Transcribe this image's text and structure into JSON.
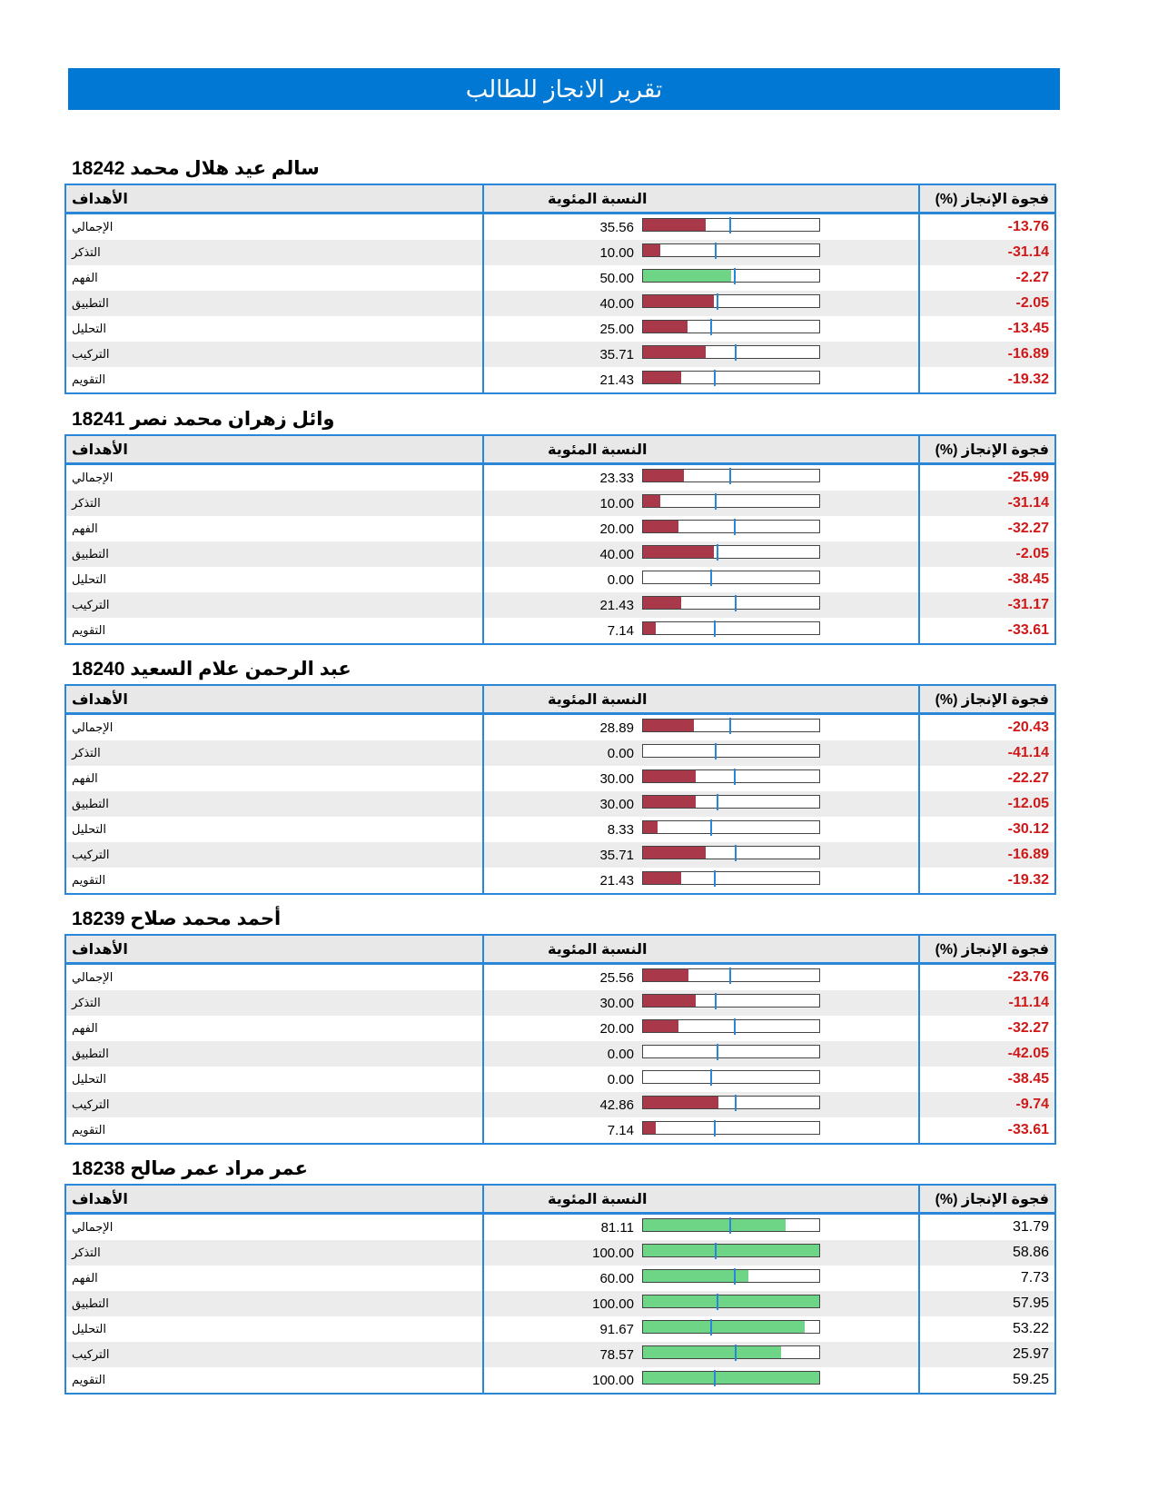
{
  "title": "تقرير الانجاز للطالب",
  "headers": {
    "objectives": "الأهداف",
    "percentage": "النسبة المئوية",
    "gap": "(%) فجوة الإنجاز"
  },
  "colors": {
    "banner": "#0078d4",
    "border": "#2a86d6",
    "bar_low": "#a8384a",
    "bar_high": "#6ed486",
    "gap_negative": "#d01818",
    "marker": "#2a86d6"
  },
  "students": [
    {
      "name": "سالم عيد هلال محمد",
      "id": "18242",
      "rows": [
        {
          "objective": "الإجمالي",
          "percent": "35.56",
          "value": 35.56,
          "benchmark": 49.32,
          "gap": "-13.76"
        },
        {
          "objective": "التذكر",
          "percent": "10.00",
          "value": 10.0,
          "benchmark": 41.14,
          "gap": "-31.14"
        },
        {
          "objective": "الفهم",
          "percent": "50.00",
          "value": 50.0,
          "benchmark": 52.27,
          "gap": "-2.27"
        },
        {
          "objective": "التطبيق",
          "percent": "40.00",
          "value": 40.0,
          "benchmark": 42.05,
          "gap": "-2.05"
        },
        {
          "objective": "التحليل",
          "percent": "25.00",
          "value": 25.0,
          "benchmark": 38.45,
          "gap": "-13.45"
        },
        {
          "objective": "التركيب",
          "percent": "35.71",
          "value": 35.71,
          "benchmark": 52.6,
          "gap": "-16.89"
        },
        {
          "objective": "التقويم",
          "percent": "21.43",
          "value": 21.43,
          "benchmark": 40.75,
          "gap": "-19.32"
        }
      ]
    },
    {
      "name": "وائل زهران محمد نصر",
      "id": "18241",
      "rows": [
        {
          "objective": "الإجمالي",
          "percent": "23.33",
          "value": 23.33,
          "benchmark": 49.32,
          "gap": "-25.99"
        },
        {
          "objective": "التذكر",
          "percent": "10.00",
          "value": 10.0,
          "benchmark": 41.14,
          "gap": "-31.14"
        },
        {
          "objective": "الفهم",
          "percent": "20.00",
          "value": 20.0,
          "benchmark": 52.27,
          "gap": "-32.27"
        },
        {
          "objective": "التطبيق",
          "percent": "40.00",
          "value": 40.0,
          "benchmark": 42.05,
          "gap": "-2.05"
        },
        {
          "objective": "التحليل",
          "percent": "0.00",
          "value": 0.0,
          "benchmark": 38.45,
          "gap": "-38.45"
        },
        {
          "objective": "التركيب",
          "percent": "21.43",
          "value": 21.43,
          "benchmark": 52.6,
          "gap": "-31.17"
        },
        {
          "objective": "التقويم",
          "percent": "7.14",
          "value": 7.14,
          "benchmark": 40.75,
          "gap": "-33.61"
        }
      ]
    },
    {
      "name": "عبد الرحمن علام السعيد",
      "id": "18240",
      "rows": [
        {
          "objective": "الإجمالي",
          "percent": "28.89",
          "value": 28.89,
          "benchmark": 49.32,
          "gap": "-20.43"
        },
        {
          "objective": "التذكر",
          "percent": "0.00",
          "value": 0.0,
          "benchmark": 41.14,
          "gap": "-41.14"
        },
        {
          "objective": "الفهم",
          "percent": "30.00",
          "value": 30.0,
          "benchmark": 52.27,
          "gap": "-22.27"
        },
        {
          "objective": "التطبيق",
          "percent": "30.00",
          "value": 30.0,
          "benchmark": 42.05,
          "gap": "-12.05"
        },
        {
          "objective": "التحليل",
          "percent": "8.33",
          "value": 8.33,
          "benchmark": 38.45,
          "gap": "-30.12"
        },
        {
          "objective": "التركيب",
          "percent": "35.71",
          "value": 35.71,
          "benchmark": 52.6,
          "gap": "-16.89"
        },
        {
          "objective": "التقويم",
          "percent": "21.43",
          "value": 21.43,
          "benchmark": 40.75,
          "gap": "-19.32"
        }
      ]
    },
    {
      "name": "أحمد محمد صلاح",
      "id": "18239",
      "rows": [
        {
          "objective": "الإجمالي",
          "percent": "25.56",
          "value": 25.56,
          "benchmark": 49.32,
          "gap": "-23.76"
        },
        {
          "objective": "التذكر",
          "percent": "30.00",
          "value": 30.0,
          "benchmark": 41.14,
          "gap": "-11.14"
        },
        {
          "objective": "الفهم",
          "percent": "20.00",
          "value": 20.0,
          "benchmark": 52.27,
          "gap": "-32.27"
        },
        {
          "objective": "التطبيق",
          "percent": "0.00",
          "value": 0.0,
          "benchmark": 42.05,
          "gap": "-42.05"
        },
        {
          "objective": "التحليل",
          "percent": "0.00",
          "value": 0.0,
          "benchmark": 38.45,
          "gap": "-38.45"
        },
        {
          "objective": "التركيب",
          "percent": "42.86",
          "value": 42.86,
          "benchmark": 52.6,
          "gap": "-9.74"
        },
        {
          "objective": "التقويم",
          "percent": "7.14",
          "value": 7.14,
          "benchmark": 40.75,
          "gap": "-33.61"
        }
      ]
    },
    {
      "name": "عمر مراد عمر صالح",
      "id": "18238",
      "rows": [
        {
          "objective": "الإجمالي",
          "percent": "81.11",
          "value": 81.11,
          "benchmark": 49.32,
          "gap": "31.79"
        },
        {
          "objective": "التذكر",
          "percent": "100.00",
          "value": 100.0,
          "benchmark": 41.14,
          "gap": "58.86"
        },
        {
          "objective": "الفهم",
          "percent": "60.00",
          "value": 60.0,
          "benchmark": 52.27,
          "gap": "7.73"
        },
        {
          "objective": "التطبيق",
          "percent": "100.00",
          "value": 100.0,
          "benchmark": 42.05,
          "gap": "57.95"
        },
        {
          "objective": "التحليل",
          "percent": "91.67",
          "value": 91.67,
          "benchmark": 38.45,
          "gap": "53.22"
        },
        {
          "objective": "التركيب",
          "percent": "78.57",
          "value": 78.57,
          "benchmark": 52.6,
          "gap": "25.97"
        },
        {
          "objective": "التقويم",
          "percent": "100.00",
          "value": 100.0,
          "benchmark": 40.75,
          "gap": "59.25"
        }
      ]
    }
  ]
}
